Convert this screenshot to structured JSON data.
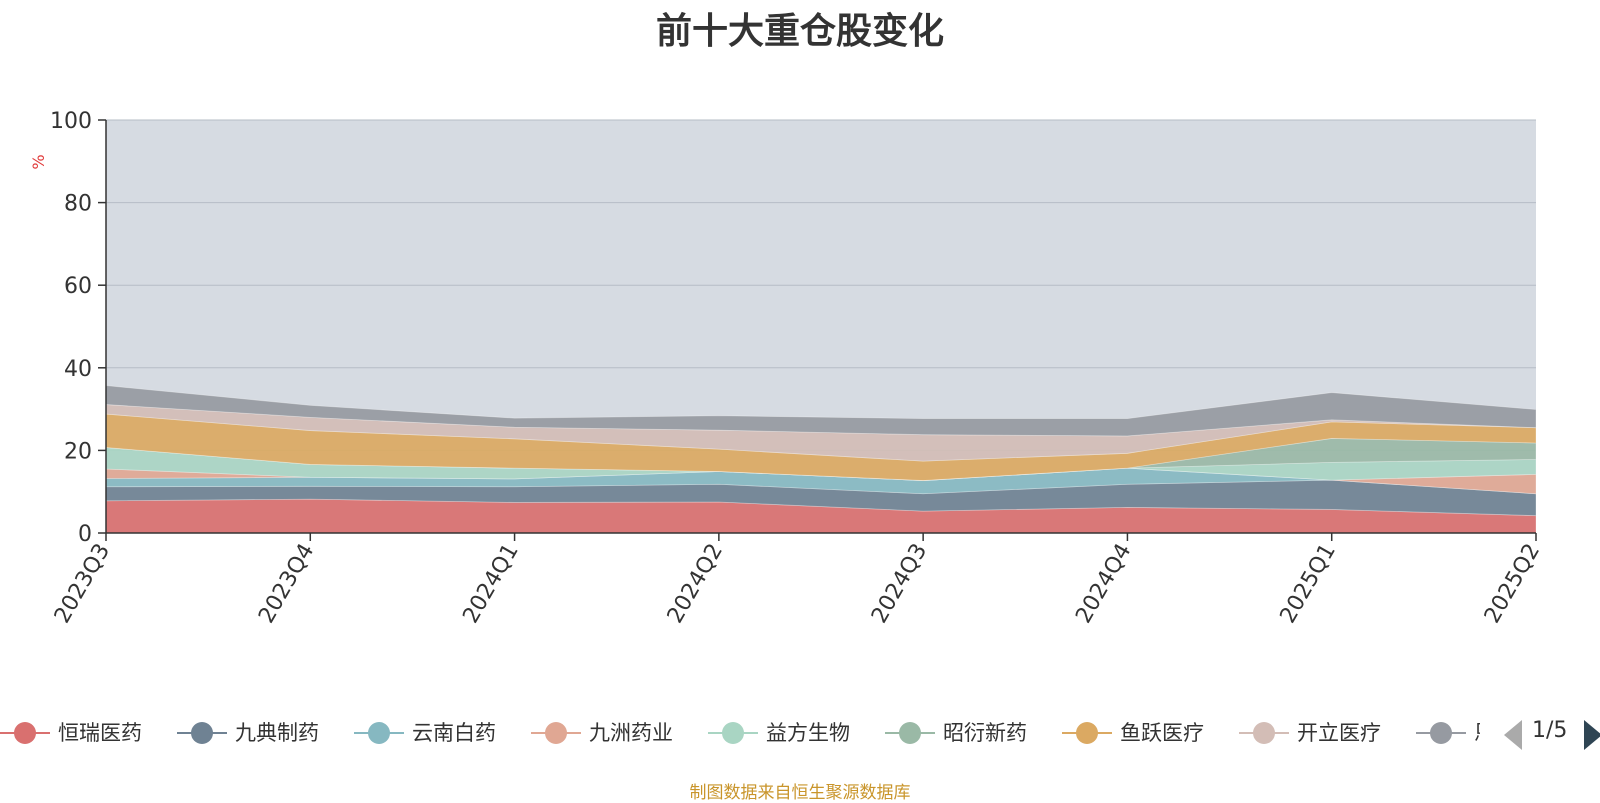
{
  "chart_data": {
    "type": "area",
    "title": "前十大重仓股变化",
    "ylabel": "%",
    "ylim": [
      0,
      100
    ],
    "yticks": [
      0,
      20,
      40,
      60,
      80,
      100
    ],
    "grid": true,
    "legend_position": "bottom",
    "categories": [
      "2023Q3",
      "2023Q4",
      "2024Q1",
      "2024Q2",
      "2024Q3",
      "2024Q4",
      "2025Q1",
      "2025Q2"
    ],
    "series": [
      {
        "name": "恒瑞医药",
        "color": "#d9706f",
        "values": [
          7.8,
          8.2,
          7.4,
          7.5,
          5.3,
          6.2,
          5.7,
          4.2
        ]
      },
      {
        "name": "九典制药",
        "color": "#6f8293",
        "values": [
          3.4,
          3.1,
          3.8,
          4.3,
          4.2,
          5.6,
          7.1,
          5.3
        ]
      },
      {
        "name": "云南白药",
        "color": "#86b8c1",
        "values": [
          2.0,
          2.2,
          1.9,
          3.1,
          3.2,
          3.9,
          0,
          0
        ]
      },
      {
        "name": "九洲药业",
        "color": "#e0a793",
        "values": [
          2.3,
          0,
          0,
          0,
          0,
          0,
          0,
          4.7
        ]
      },
      {
        "name": "益方生物",
        "color": "#a9d5c3",
        "values": [
          5.2,
          3.1,
          2.6,
          0,
          0,
          0,
          4.3,
          3.6
        ]
      },
      {
        "name": "昭衍新药",
        "color": "#9ab9a6",
        "values": [
          0,
          0,
          0,
          0,
          0,
          0,
          5.8,
          4.0
        ]
      },
      {
        "name": "鱼跃医疗",
        "color": "#dba962",
        "values": [
          8.1,
          8.2,
          7.1,
          5.4,
          4.7,
          3.6,
          4.0,
          3.7
        ]
      },
      {
        "name": "开立医疗",
        "color": "#d3bdb6",
        "values": [
          2.3,
          3.2,
          2.8,
          4.6,
          6.4,
          4.2,
          0.5,
          0
        ]
      },
      {
        "name": "恩华药业",
        "color": "#969aa1",
        "values": [
          4.6,
          2.9,
          2.2,
          3.5,
          3.9,
          4.2,
          6.6,
          4.4
        ]
      }
    ],
    "pager": {
      "current": 1,
      "total": 5
    }
  },
  "source_note": "制图数据来自恒生聚源数据库"
}
